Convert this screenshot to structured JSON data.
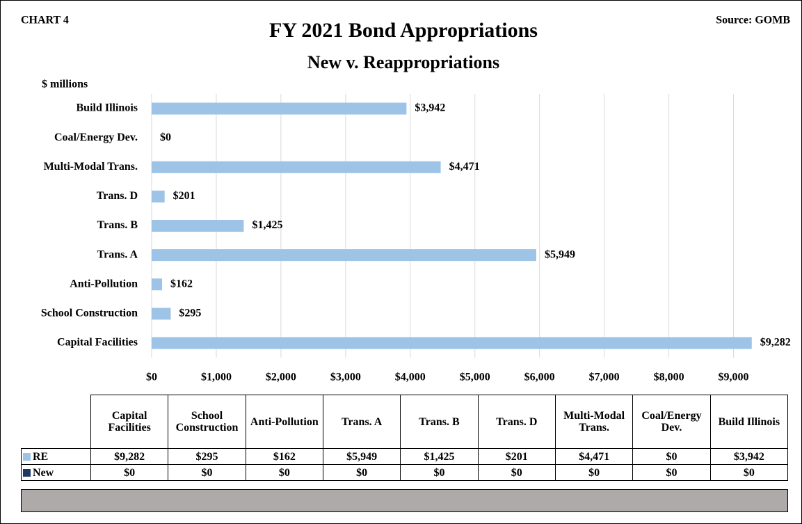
{
  "chart_data": {
    "type": "bar",
    "orientation": "horizontal",
    "label": "CHART 4",
    "title": "FY 2021 Bond Appropriations",
    "subtitle": "New v. Reappropriations",
    "source": "Source: GOMB",
    "unit_label": "$ millions",
    "categories": [
      "Capital Facilities",
      "School Construction",
      "Anti-Pollution",
      "Trans. A",
      "Trans. B",
      "Trans. D",
      "Multi-Modal Trans.",
      "Coal/Energy Dev.",
      "Build Illinois"
    ],
    "series": [
      {
        "name": "RE",
        "color": "#9dc3e6",
        "values": [
          9282,
          295,
          162,
          5949,
          1425,
          201,
          4471,
          0,
          3942
        ],
        "value_labels": [
          "$9,282",
          "$295",
          "$162",
          "$5,949",
          "$1,425",
          "$201",
          "$4,471",
          "$0",
          "$3,942"
        ]
      },
      {
        "name": "New",
        "color": "#1f3864",
        "values": [
          0,
          0,
          0,
          0,
          0,
          0,
          0,
          0,
          0
        ],
        "value_labels": [
          "$0",
          "$0",
          "$0",
          "$0",
          "$0",
          "$0",
          "$0",
          "$0",
          "$0"
        ]
      }
    ],
    "xlim": [
      0,
      9500
    ],
    "xticks": [
      {
        "value": 0,
        "label": "$0"
      },
      {
        "value": 1000,
        "label": "$1,000"
      },
      {
        "value": 2000,
        "label": "$2,000"
      },
      {
        "value": 3000,
        "label": "$3,000"
      },
      {
        "value": 4000,
        "label": "$4,000"
      },
      {
        "value": 5000,
        "label": "$5,000"
      },
      {
        "value": 6000,
        "label": "$6,000"
      },
      {
        "value": 7000,
        "label": "$7,000"
      },
      {
        "value": 8000,
        "label": "$8,000"
      },
      {
        "value": 9000,
        "label": "$9,000"
      }
    ],
    "grid": true
  }
}
